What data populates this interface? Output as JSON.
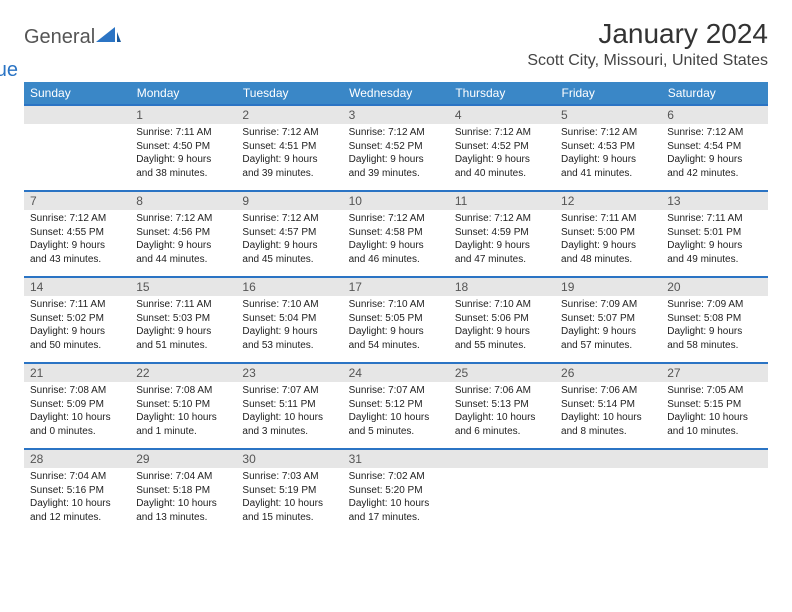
{
  "logo": {
    "part1": "General",
    "part2": "Blue"
  },
  "title": "January 2024",
  "location": "Scott City, Missouri, United States",
  "colors": {
    "header_bg": "#3a87c7",
    "accent": "#2b74c4",
    "daynum_bg": "#e6e6e6",
    "text": "#222222",
    "title_color": "#333333"
  },
  "day_headers": [
    "Sunday",
    "Monday",
    "Tuesday",
    "Wednesday",
    "Thursday",
    "Friday",
    "Saturday"
  ],
  "weeks": [
    [
      null,
      {
        "n": "1",
        "sr": "Sunrise: 7:11 AM",
        "ss": "Sunset: 4:50 PM",
        "d1": "Daylight: 9 hours",
        "d2": "and 38 minutes."
      },
      {
        "n": "2",
        "sr": "Sunrise: 7:12 AM",
        "ss": "Sunset: 4:51 PM",
        "d1": "Daylight: 9 hours",
        "d2": "and 39 minutes."
      },
      {
        "n": "3",
        "sr": "Sunrise: 7:12 AM",
        "ss": "Sunset: 4:52 PM",
        "d1": "Daylight: 9 hours",
        "d2": "and 39 minutes."
      },
      {
        "n": "4",
        "sr": "Sunrise: 7:12 AM",
        "ss": "Sunset: 4:52 PM",
        "d1": "Daylight: 9 hours",
        "d2": "and 40 minutes."
      },
      {
        "n": "5",
        "sr": "Sunrise: 7:12 AM",
        "ss": "Sunset: 4:53 PM",
        "d1": "Daylight: 9 hours",
        "d2": "and 41 minutes."
      },
      {
        "n": "6",
        "sr": "Sunrise: 7:12 AM",
        "ss": "Sunset: 4:54 PM",
        "d1": "Daylight: 9 hours",
        "d2": "and 42 minutes."
      }
    ],
    [
      {
        "n": "7",
        "sr": "Sunrise: 7:12 AM",
        "ss": "Sunset: 4:55 PM",
        "d1": "Daylight: 9 hours",
        "d2": "and 43 minutes."
      },
      {
        "n": "8",
        "sr": "Sunrise: 7:12 AM",
        "ss": "Sunset: 4:56 PM",
        "d1": "Daylight: 9 hours",
        "d2": "and 44 minutes."
      },
      {
        "n": "9",
        "sr": "Sunrise: 7:12 AM",
        "ss": "Sunset: 4:57 PM",
        "d1": "Daylight: 9 hours",
        "d2": "and 45 minutes."
      },
      {
        "n": "10",
        "sr": "Sunrise: 7:12 AM",
        "ss": "Sunset: 4:58 PM",
        "d1": "Daylight: 9 hours",
        "d2": "and 46 minutes."
      },
      {
        "n": "11",
        "sr": "Sunrise: 7:12 AM",
        "ss": "Sunset: 4:59 PM",
        "d1": "Daylight: 9 hours",
        "d2": "and 47 minutes."
      },
      {
        "n": "12",
        "sr": "Sunrise: 7:11 AM",
        "ss": "Sunset: 5:00 PM",
        "d1": "Daylight: 9 hours",
        "d2": "and 48 minutes."
      },
      {
        "n": "13",
        "sr": "Sunrise: 7:11 AM",
        "ss": "Sunset: 5:01 PM",
        "d1": "Daylight: 9 hours",
        "d2": "and 49 minutes."
      }
    ],
    [
      {
        "n": "14",
        "sr": "Sunrise: 7:11 AM",
        "ss": "Sunset: 5:02 PM",
        "d1": "Daylight: 9 hours",
        "d2": "and 50 minutes."
      },
      {
        "n": "15",
        "sr": "Sunrise: 7:11 AM",
        "ss": "Sunset: 5:03 PM",
        "d1": "Daylight: 9 hours",
        "d2": "and 51 minutes."
      },
      {
        "n": "16",
        "sr": "Sunrise: 7:10 AM",
        "ss": "Sunset: 5:04 PM",
        "d1": "Daylight: 9 hours",
        "d2": "and 53 minutes."
      },
      {
        "n": "17",
        "sr": "Sunrise: 7:10 AM",
        "ss": "Sunset: 5:05 PM",
        "d1": "Daylight: 9 hours",
        "d2": "and 54 minutes."
      },
      {
        "n": "18",
        "sr": "Sunrise: 7:10 AM",
        "ss": "Sunset: 5:06 PM",
        "d1": "Daylight: 9 hours",
        "d2": "and 55 minutes."
      },
      {
        "n": "19",
        "sr": "Sunrise: 7:09 AM",
        "ss": "Sunset: 5:07 PM",
        "d1": "Daylight: 9 hours",
        "d2": "and 57 minutes."
      },
      {
        "n": "20",
        "sr": "Sunrise: 7:09 AM",
        "ss": "Sunset: 5:08 PM",
        "d1": "Daylight: 9 hours",
        "d2": "and 58 minutes."
      }
    ],
    [
      {
        "n": "21",
        "sr": "Sunrise: 7:08 AM",
        "ss": "Sunset: 5:09 PM",
        "d1": "Daylight: 10 hours",
        "d2": "and 0 minutes."
      },
      {
        "n": "22",
        "sr": "Sunrise: 7:08 AM",
        "ss": "Sunset: 5:10 PM",
        "d1": "Daylight: 10 hours",
        "d2": "and 1 minute."
      },
      {
        "n": "23",
        "sr": "Sunrise: 7:07 AM",
        "ss": "Sunset: 5:11 PM",
        "d1": "Daylight: 10 hours",
        "d2": "and 3 minutes."
      },
      {
        "n": "24",
        "sr": "Sunrise: 7:07 AM",
        "ss": "Sunset: 5:12 PM",
        "d1": "Daylight: 10 hours",
        "d2": "and 5 minutes."
      },
      {
        "n": "25",
        "sr": "Sunrise: 7:06 AM",
        "ss": "Sunset: 5:13 PM",
        "d1": "Daylight: 10 hours",
        "d2": "and 6 minutes."
      },
      {
        "n": "26",
        "sr": "Sunrise: 7:06 AM",
        "ss": "Sunset: 5:14 PM",
        "d1": "Daylight: 10 hours",
        "d2": "and 8 minutes."
      },
      {
        "n": "27",
        "sr": "Sunrise: 7:05 AM",
        "ss": "Sunset: 5:15 PM",
        "d1": "Daylight: 10 hours",
        "d2": "and 10 minutes."
      }
    ],
    [
      {
        "n": "28",
        "sr": "Sunrise: 7:04 AM",
        "ss": "Sunset: 5:16 PM",
        "d1": "Daylight: 10 hours",
        "d2": "and 12 minutes."
      },
      {
        "n": "29",
        "sr": "Sunrise: 7:04 AM",
        "ss": "Sunset: 5:18 PM",
        "d1": "Daylight: 10 hours",
        "d2": "and 13 minutes."
      },
      {
        "n": "30",
        "sr": "Sunrise: 7:03 AM",
        "ss": "Sunset: 5:19 PM",
        "d1": "Daylight: 10 hours",
        "d2": "and 15 minutes."
      },
      {
        "n": "31",
        "sr": "Sunrise: 7:02 AM",
        "ss": "Sunset: 5:20 PM",
        "d1": "Daylight: 10 hours",
        "d2": "and 17 minutes."
      },
      null,
      null,
      null
    ]
  ]
}
